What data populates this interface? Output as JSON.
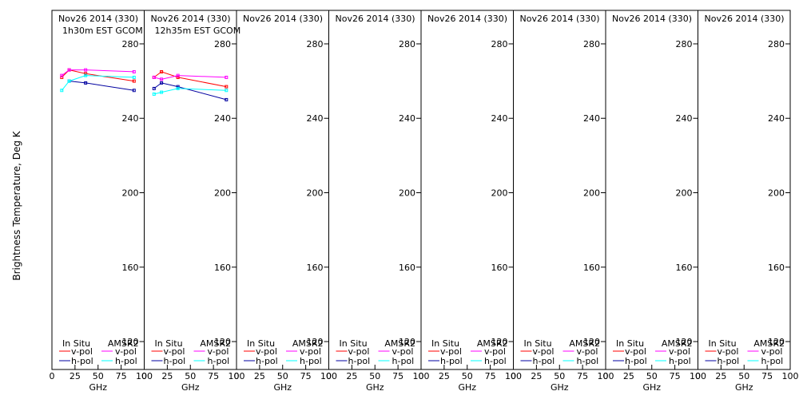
{
  "chart_data": {
    "type": "line",
    "ylabel": "Brightness Temperature, Deg K",
    "xlabel": "GHz",
    "xlim": [
      0,
      100
    ],
    "ylim": [
      105,
      298
    ],
    "xticks": [
      0,
      25,
      50,
      75,
      100
    ],
    "yticks": [
      120,
      160,
      200,
      240,
      280
    ],
    "legend": {
      "header_left": "In Situ",
      "header_right": "AMSR2",
      "vpol": "v-pol",
      "hpol": "h-pol"
    },
    "colors": {
      "insitu_v": "#ff0000",
      "insitu_h": "#0000a0",
      "amsr2_v": "#ff00ff",
      "amsr2_h": "#00ffff"
    },
    "panels": [
      {
        "title": "Nov26 2014 (330)",
        "subtitle": "1h30m EST GCOM",
        "series": [
          {
            "name": "In Situ v-pol",
            "x": [
              10.65,
              18.7,
              36.5,
              89.0
            ],
            "y": [
              262,
              266,
              264,
              260
            ]
          },
          {
            "name": "In Situ h-pol",
            "x": [
              18.7,
              36.5,
              89.0
            ],
            "y": [
              260,
              259,
              255
            ]
          },
          {
            "name": "AMSR2 v-pol",
            "x": [
              10.65,
              18.7,
              36.5,
              89.0
            ],
            "y": [
              263,
              266,
              266,
              265
            ]
          },
          {
            "name": "AMSR2 h-pol",
            "x": [
              10.65,
              18.7,
              36.5,
              89.0
            ],
            "y": [
              255,
              260,
              263,
              262
            ]
          }
        ]
      },
      {
        "title": "Nov26 2014 (330)",
        "subtitle": "12h35m EST GCOM",
        "series": [
          {
            "name": "In Situ v-pol",
            "x": [
              10.65,
              18.7,
              36.5,
              89.0
            ],
            "y": [
              262,
              265,
              262,
              257
            ]
          },
          {
            "name": "In Situ h-pol",
            "x": [
              10.65,
              18.7,
              36.5,
              89.0
            ],
            "y": [
              256,
              259,
              257,
              250
            ]
          },
          {
            "name": "AMSR2 v-pol",
            "x": [
              10.65,
              18.7,
              36.5,
              89.0
            ],
            "y": [
              262,
              261,
              263,
              262
            ]
          },
          {
            "name": "AMSR2 h-pol",
            "x": [
              10.65,
              18.7,
              36.5,
              89.0
            ],
            "y": [
              253,
              254,
              256,
              255
            ]
          }
        ]
      },
      {
        "title": "Nov26 2014 (330)",
        "subtitle": "",
        "series": []
      },
      {
        "title": "Nov26 2014 (330)",
        "subtitle": "",
        "series": []
      },
      {
        "title": "Nov26 2014 (330)",
        "subtitle": "",
        "series": []
      },
      {
        "title": "Nov26 2014 (330)",
        "subtitle": "",
        "series": []
      },
      {
        "title": "Nov26 2014 (330)",
        "subtitle": "",
        "series": []
      },
      {
        "title": "Nov26 2014 (330)",
        "subtitle": "",
        "series": []
      }
    ]
  }
}
